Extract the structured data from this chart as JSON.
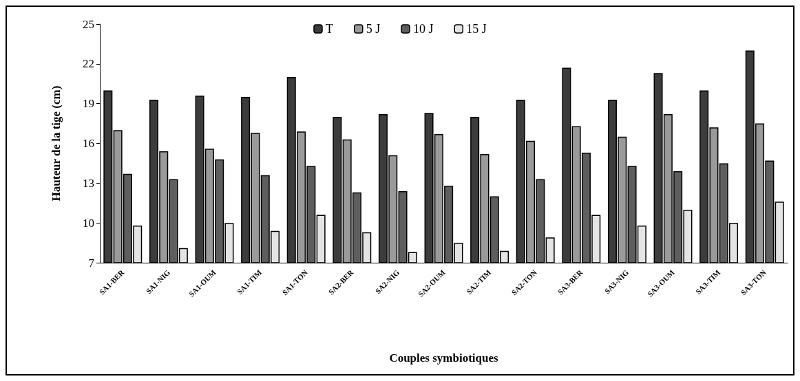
{
  "chart_data": {
    "type": "bar",
    "xlabel": "Couples symbiotiques",
    "ylabel": "Hauteur de la tige (cm)",
    "categories": [
      "SA1-BER",
      "SA1-NIG",
      "SA1-OUM",
      "SA1-TIM",
      "SA1-TON",
      "SA2-BER",
      "SA2-NIG",
      "SA2-OUM",
      "SA2-TIM",
      "SA2-TON",
      "SA3-BER",
      "SA3-NIG",
      "SA3-OUM",
      "SA3-TIM",
      "SA3-TON"
    ],
    "series": [
      {
        "name": "T",
        "color": "#3c3c3c",
        "values": [
          20.0,
          19.3,
          19.6,
          19.5,
          21.0,
          18.0,
          18.2,
          18.3,
          18.0,
          19.3,
          21.7,
          19.3,
          21.3,
          20.0,
          23.0
        ]
      },
      {
        "name": "5 J",
        "color": "#9a9a9a",
        "values": [
          17.0,
          15.4,
          15.6,
          16.8,
          16.9,
          16.3,
          15.1,
          16.7,
          15.2,
          16.2,
          17.3,
          16.5,
          18.2,
          17.2,
          17.5
        ]
      },
      {
        "name": "10 J",
        "color": "#5e5e5e",
        "values": [
          13.7,
          13.3,
          14.8,
          13.6,
          14.3,
          12.3,
          12.4,
          12.8,
          12.0,
          13.3,
          15.3,
          14.3,
          13.9,
          14.5,
          14.7
        ]
      },
      {
        "name": "15 J",
        "color": "#e4e4e4",
        "values": [
          9.8,
          8.1,
          10.0,
          9.4,
          10.6,
          9.3,
          7.8,
          8.5,
          7.9,
          8.9,
          10.6,
          9.8,
          11.0,
          10.0,
          11.6
        ]
      }
    ],
    "ylim": [
      7,
      25
    ],
    "yticks": [
      7,
      10,
      13,
      16,
      19,
      22,
      25
    ],
    "grid": false,
    "legend": "top"
  }
}
